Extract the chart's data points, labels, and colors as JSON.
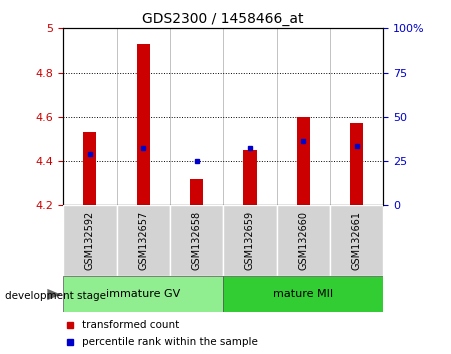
{
  "title": "GDS2300 / 1458466_at",
  "samples": [
    "GSM132592",
    "GSM132657",
    "GSM132658",
    "GSM132659",
    "GSM132660",
    "GSM132661"
  ],
  "red_values": [
    4.53,
    4.93,
    4.32,
    4.45,
    4.6,
    4.57
  ],
  "blue_values": [
    4.43,
    4.46,
    4.4,
    4.46,
    4.49,
    4.47
  ],
  "ylim_left": [
    4.2,
    5.0
  ],
  "yticks_left": [
    4.2,
    4.4,
    4.6,
    4.8,
    5.0
  ],
  "ytick_labels_left": [
    "4.2",
    "4.4",
    "4.6",
    "4.8",
    "5"
  ],
  "yticks_right": [
    0,
    25,
    50,
    75,
    100
  ],
  "ytick_labels_right": [
    "0",
    "25",
    "50",
    "75",
    "100%"
  ],
  "groups": [
    {
      "label": "immature GV",
      "start": 0,
      "end": 2,
      "color": "#90ee90"
    },
    {
      "label": "mature MII",
      "start": 3,
      "end": 5,
      "color": "#32cd32"
    }
  ],
  "group_label": "development stage",
  "bar_width": 0.25,
  "red_color": "#cc0000",
  "blue_color": "#0000cc",
  "plot_bg": "#ffffff",
  "sample_bg": "#d3d3d3",
  "grid_color": "#000000",
  "left_tick_color": "#cc0000",
  "right_tick_color": "#0000cc",
  "bar_base": 4.2,
  "legend_red": "transformed count",
  "legend_blue": "percentile rank within the sample"
}
